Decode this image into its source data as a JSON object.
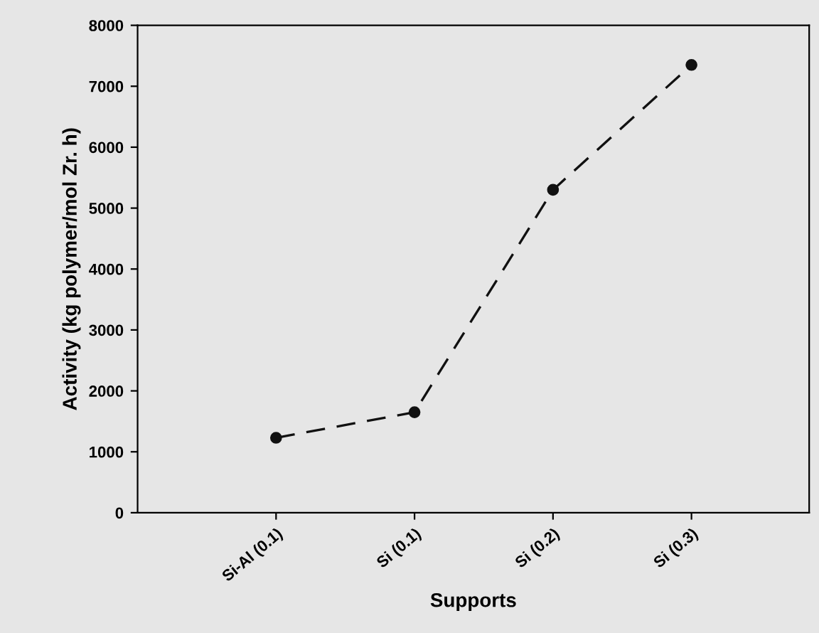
{
  "chart_data": {
    "type": "line",
    "xlabel": "Supports",
    "ylabel": "Activity (kg polymer/mol Zr. h)",
    "categories": [
      "Si-Al (0.1)",
      "Si (0.1)",
      "Si (0.2)",
      "Si (0.3)"
    ],
    "series": [
      {
        "color": "#111111",
        "values": [
          1230,
          1650,
          5300,
          7350
        ]
      }
    ],
    "ylim": [
      0,
      8000
    ],
    "yticks": [
      0,
      1000,
      2000,
      3000,
      4000,
      5000,
      6000,
      7000,
      8000
    ],
    "grid": false,
    "marker": "circle",
    "line_style": "dashed"
  }
}
